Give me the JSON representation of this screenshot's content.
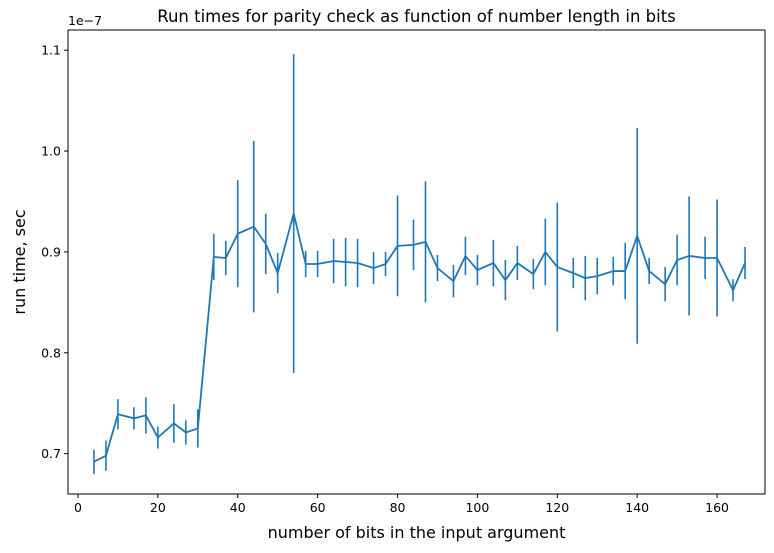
{
  "chart_data": {
    "type": "line",
    "title": "Run times for parity check as function of number length in bits",
    "xlabel": "number of bits in the input argument",
    "ylabel": "run time, sec",
    "y_offset_label": "1e−7",
    "xlim": [
      -2.5,
      172
    ],
    "ylim": [
      0.66,
      1.12
    ],
    "x_ticks": [
      0,
      20,
      40,
      60,
      80,
      100,
      120,
      140,
      160
    ],
    "x_tick_labels": [
      "0",
      "20",
      "40",
      "60",
      "80",
      "100",
      "120",
      "140",
      "160"
    ],
    "y_ticks": [
      0.7,
      0.8,
      0.9,
      1.0,
      1.1
    ],
    "y_tick_labels": [
      "0.7",
      "0.8",
      "0.9",
      "1.0",
      "1.1"
    ],
    "grid": false,
    "series_color": "#1f77b4",
    "series": [
      {
        "x": [
          4,
          7,
          10,
          14,
          17,
          20,
          24,
          27,
          30,
          34,
          37,
          40,
          44,
          47,
          50,
          54,
          57,
          60,
          64,
          67,
          70,
          74,
          77,
          80,
          84,
          87,
          90,
          94,
          97,
          100,
          104,
          107,
          110,
          114,
          117,
          120,
          124,
          127,
          130,
          134,
          137,
          140,
          143,
          147,
          150,
          153,
          157,
          160,
          164,
          167
        ],
        "y": [
          0.692,
          0.698,
          0.739,
          0.735,
          0.738,
          0.716,
          0.73,
          0.721,
          0.725,
          0.895,
          0.894,
          0.918,
          0.925,
          0.908,
          0.879,
          0.938,
          0.888,
          0.888,
          0.891,
          0.89,
          0.889,
          0.884,
          0.888,
          0.906,
          0.907,
          0.91,
          0.884,
          0.871,
          0.896,
          0.882,
          0.889,
          0.872,
          0.889,
          0.878,
          0.9,
          0.885,
          0.879,
          0.874,
          0.876,
          0.881,
          0.881,
          0.916,
          0.881,
          0.868,
          0.892,
          0.896,
          0.894,
          0.894,
          0.862,
          0.889
        ],
        "yerr": [
          0.012,
          0.015,
          0.015,
          0.011,
          0.018,
          0.011,
          0.019,
          0.012,
          0.019,
          0.023,
          0.017,
          0.053,
          0.085,
          0.03,
          0.02,
          0.158,
          0.013,
          0.013,
          0.022,
          0.024,
          0.024,
          0.016,
          0.012,
          0.05,
          0.025,
          0.06,
          0.013,
          0.016,
          0.019,
          0.015,
          0.023,
          0.02,
          0.017,
          0.015,
          0.033,
          0.064,
          0.015,
          0.022,
          0.018,
          0.014,
          0.028,
          0.107,
          0.013,
          0.017,
          0.025,
          0.059,
          0.021,
          0.058,
          0.011,
          0.016
        ]
      }
    ]
  }
}
